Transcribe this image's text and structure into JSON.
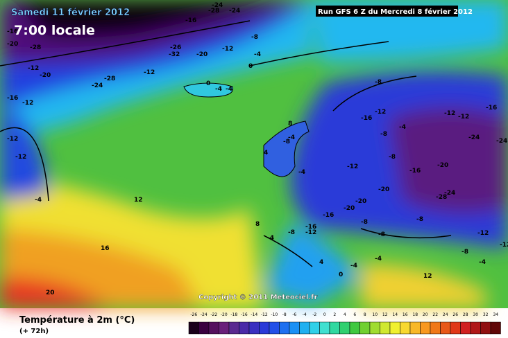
{
  "header": {
    "date": "Samedi 11 février 2012",
    "time": "7:00 locale",
    "run": "Run GFS 6 Z du Mercredi 8 février 2012"
  },
  "copyright": "Copyright © 2011 Meteociel.fr",
  "legend": {
    "title": "Température à 2m (°C)",
    "subtitle": "(+ 72h)"
  },
  "scale": {
    "ticks": [
      -26,
      -24,
      -22,
      -20,
      -18,
      -16,
      -14,
      -12,
      -10,
      -8,
      -6,
      -4,
      -2,
      0,
      2,
      4,
      6,
      8,
      10,
      12,
      14,
      16,
      18,
      20,
      22,
      24,
      26,
      28,
      30,
      32,
      34
    ],
    "colors": [
      "#1a001a",
      "#3a0040",
      "#55105e",
      "#6a1f7a",
      "#5a2a90",
      "#4a2aa8",
      "#3a30c0",
      "#2a3ad8",
      "#2250e8",
      "#1e70f0",
      "#1a90f5",
      "#20b0f0",
      "#30d0e8",
      "#40e0d0",
      "#30d8a0",
      "#30d070",
      "#40c840",
      "#70d030",
      "#a0dc30",
      "#d0e830",
      "#f0f030",
      "#f8d830",
      "#f8b828",
      "#f89820",
      "#f07818",
      "#e85818",
      "#e03818",
      "#d02020",
      "#b01818",
      "#901010",
      "#600808"
    ]
  },
  "labels": [
    -24,
    -28,
    -24,
    -16,
    -16,
    -20,
    -28,
    -8,
    -26,
    -32,
    -20,
    -12,
    -4,
    0,
    -12,
    -20,
    -12,
    -24,
    -28,
    -16,
    -12,
    0,
    -4,
    -4,
    -12,
    -12,
    -4,
    -8,
    -16,
    -12,
    -8,
    -4,
    -12,
    -12,
    -16,
    -24,
    -24,
    -20,
    -16,
    -12,
    -8,
    -4,
    -20,
    -20,
    -20,
    -24,
    -28,
    -16,
    -16,
    -12,
    -8,
    -8,
    -8,
    -8,
    -12,
    -12,
    -4,
    -4,
    -4,
    12,
    16,
    20,
    8,
    4,
    8,
    -4,
    -8,
    0,
    12,
    4,
    -8,
    -4
  ]
}
